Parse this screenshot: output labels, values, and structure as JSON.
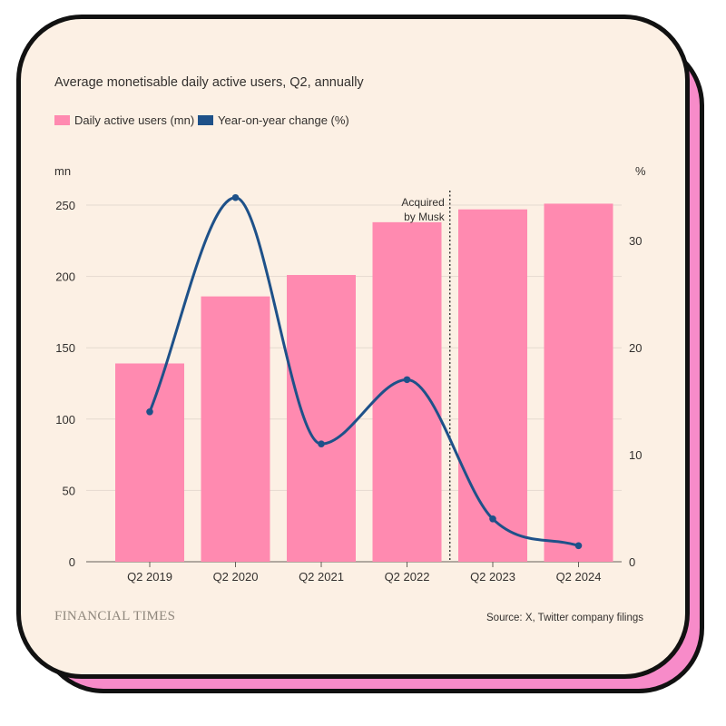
{
  "chart_data": {
    "type": "bar+line",
    "title": "Average monetisable daily active users, Q2, annually",
    "categories": [
      "Q2 2019",
      "Q2 2020",
      "Q2 2021",
      "Q2 2022",
      "Q2 2023",
      "Q2 2024"
    ],
    "series": [
      {
        "name": "Daily active users (mn)",
        "type": "bar",
        "axis": "left",
        "values": [
          139,
          186,
          201,
          238,
          247,
          251
        ]
      },
      {
        "name": "Year-on-year change (%)",
        "type": "line",
        "axis": "right",
        "values": [
          14,
          34,
          11,
          17,
          4,
          1.5
        ]
      }
    ],
    "left_axis": {
      "label": "mn",
      "ylim": [
        0,
        250
      ],
      "ticks": [
        0,
        50,
        100,
        150,
        200,
        250
      ]
    },
    "right_axis": {
      "label": "%",
      "ylim": [
        0,
        33.3
      ],
      "ticks": [
        0,
        10,
        20,
        30
      ]
    },
    "annotation": {
      "text_lines": [
        "Acquired",
        "by Musk"
      ],
      "between": [
        "Q2 2022",
        "Q2 2023"
      ]
    },
    "colors": {
      "bar": "#ff8ab0",
      "line": "#1e5189",
      "grid": "#e5dacf",
      "background": "#fcf0e4"
    }
  },
  "footer": {
    "brand": "FINANCIAL TIMES",
    "source": "Source: X, Twitter company filings"
  }
}
